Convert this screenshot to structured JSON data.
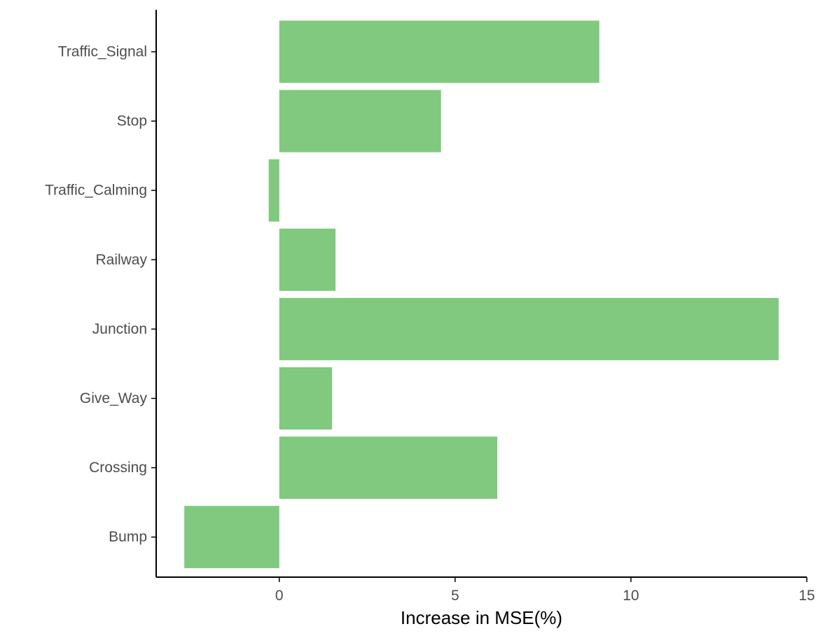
{
  "chart_data": {
    "type": "bar",
    "orientation": "horizontal",
    "categories": [
      "Traffic_Signal",
      "Stop",
      "Traffic_Calming",
      "Railway",
      "Junction",
      "Give_Way",
      "Crossing",
      "Bump"
    ],
    "values": [
      9.1,
      4.6,
      -0.3,
      1.6,
      14.2,
      1.5,
      6.2,
      -2.7
    ],
    "xlabel": "Increase in MSE(%)",
    "ylabel": "",
    "title": "",
    "xlim": [
      -3.5,
      15
    ],
    "xticks": [
      0,
      5,
      10,
      15
    ],
    "grid": false,
    "legend": "none",
    "bar_color": "#80c97f",
    "axis_color": "#000000",
    "tick_label_color": "#4d4d4d"
  }
}
